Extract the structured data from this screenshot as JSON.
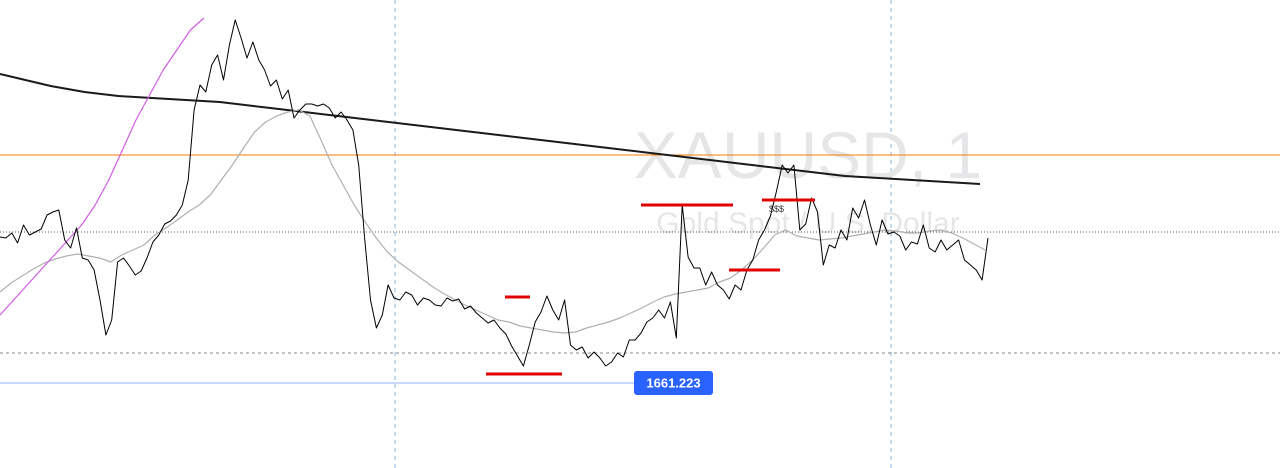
{
  "chart_data": {
    "type": "line",
    "symbol": "XAUUSD, 1",
    "description": "Gold Spot / U.S. Dollar",
    "colors": {
      "price": "#000000",
      "slow_ma": "#1a1a1a",
      "fast_ma": "#b0b0b0",
      "horizontal_level": "#f57c00",
      "trendline": "#d05ce3",
      "liquidity_marks": "#e00000",
      "price_tag": "#2962ff",
      "grid": "#8ab4e0"
    },
    "grid": "vertical dashed",
    "price_tag": {
      "value": "1661.223"
    },
    "annotation": "$$$",
    "series": [
      {
        "values": [
          237,
          238,
          233,
          243,
          225,
          235,
          232,
          229,
          215,
          212,
          210,
          240,
          248,
          228,
          258,
          260,
          270,
          300,
          335,
          320,
          262,
          258,
          266,
          275,
          271,
          258,
          242,
          235,
          224,
          221,
          215,
          205,
          180,
          110,
          85,
          92,
          65,
          55,
          80,
          45,
          20,
          38,
          58,
          42,
          60,
          70,
          86,
          80,
          99,
          90,
          118,
          110,
          104,
          104,
          106,
          104,
          108,
          118,
          112,
          120,
          130,
          165,
          238,
          300,
          328,
          315,
          285,
          298,
          300,
          292,
          295,
          305,
          298,
          300,
          305,
          306,
          298,
          301,
          299,
          309,
          306,
          313,
          318,
          323,
          320,
          328,
          334,
          346,
          356,
          366,
          345,
          322,
          312,
          296,
          310,
          320,
          300,
          345,
          350,
          347,
          358,
          352,
          358,
          366,
          362,
          353,
          357,
          340,
          340,
          333,
          322,
          318,
          310,
          318,
          302,
          338,
          205,
          257,
          268,
          268,
          285,
          272,
          285,
          290,
          299,
          285,
          290,
          270,
          260,
          240,
          230,
          216,
          192,
          165,
          173,
          165,
          230,
          224,
          198,
          212,
          265,
          245,
          248,
          230,
          240,
          208,
          218,
          200,
          225,
          245,
          220,
          234,
          232,
          236,
          250,
          242,
          244,
          225,
          248,
          252,
          240,
          250,
          245,
          240,
          260,
          265,
          270,
          280,
          238
        ]
      },
      {
        "values": [
          74,
          78,
          82,
          86,
          89,
          92,
          94,
          96,
          97,
          98,
          99,
          100,
          101,
          102,
          104,
          106,
          108,
          110,
          112,
          114,
          116,
          118,
          120,
          122,
          124,
          126,
          128,
          130,
          132,
          134,
          136,
          138,
          140,
          142,
          144,
          146,
          148,
          150,
          152,
          154,
          156,
          158,
          160,
          162,
          164,
          166,
          168,
          170,
          172,
          174,
          176,
          177,
          178,
          179,
          180,
          181,
          182,
          183,
          184
        ]
      },
      {
        "values": [
          292,
          283,
          276,
          269,
          263,
          259,
          256,
          254,
          256,
          258,
          262,
          255,
          250,
          245,
          235,
          228,
          220,
          212,
          205,
          195,
          180,
          165,
          148,
          132,
          122,
          116,
          112,
          110,
          116,
          140,
          165,
          185,
          205,
          222,
          238,
          252,
          262,
          270,
          278,
          286,
          293,
          299,
          305,
          310,
          315,
          320,
          322,
          326,
          328,
          330,
          332,
          333,
          332,
          328,
          325,
          322,
          318,
          313,
          308,
          302,
          297,
          294,
          292,
          290,
          288,
          282,
          278,
          270,
          260,
          248,
          235,
          230,
          236,
          238,
          240,
          239,
          238,
          236,
          234,
          232,
          230,
          231,
          233,
          233,
          231,
          230,
          233,
          238,
          244,
          250
        ]
      },
      {
        "values": [
          315,
          300,
          285,
          270,
          255,
          240,
          225,
          205,
          180,
          150,
          120,
          95,
          70,
          50,
          30,
          18
        ]
      }
    ],
    "levels": [
      {
        "role": "horizontal_level",
        "value": 155
      },
      {
        "role": "last_price",
        "value": 232
      },
      {
        "role": "lower_level",
        "value": 353
      },
      {
        "role": "price_tag_level",
        "value": 383
      }
    ],
    "marks": [
      {
        "x": [
          486,
          562
        ],
        "y": 374
      },
      {
        "x": [
          505,
          530
        ],
        "y": 297
      },
      {
        "x": [
          641,
          733
        ],
        "y": 205
      },
      {
        "x": [
          729,
          780
        ],
        "y": 270
      },
      {
        "x": [
          762,
          815
        ],
        "y": 200
      }
    ],
    "vertical_gridlines": [
      395,
      891
    ],
    "ylim": [
      0,
      468
    ]
  }
}
